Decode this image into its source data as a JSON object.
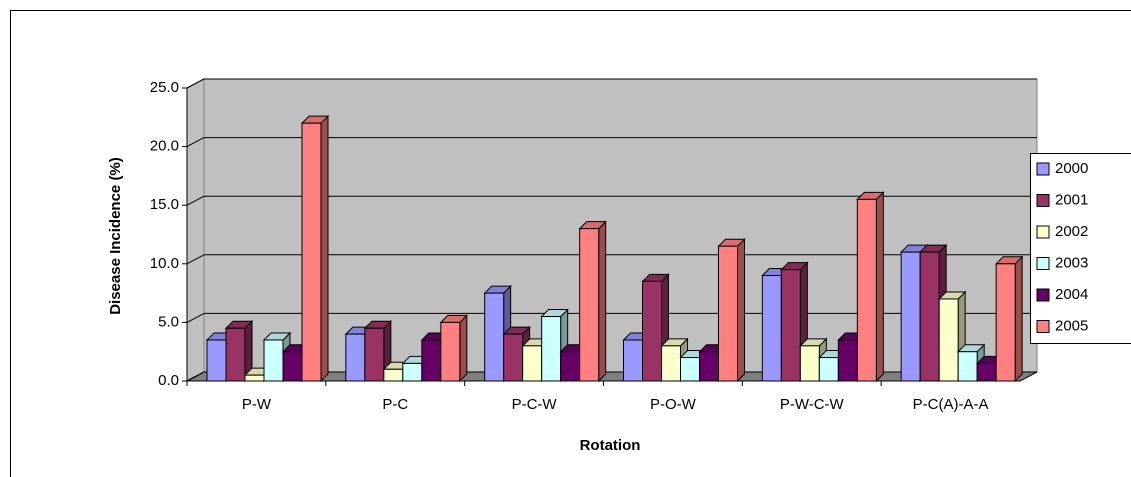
{
  "chart_data": {
    "type": "bar",
    "x_label": "Rotation",
    "y_label": "Disease Incidence (%)",
    "categories": [
      "P-W",
      "P-C",
      "P-C-W",
      "P-O-W",
      "P-W-C-W",
      "P-C(A)-A-A"
    ],
    "series": [
      {
        "name": "2000",
        "color": "#9999ff",
        "values": [
          3.5,
          4,
          7.5,
          3.5,
          9,
          11
        ]
      },
      {
        "name": "2001",
        "color": "#993366",
        "values": [
          4.5,
          4.5,
          4,
          8.5,
          9.5,
          11
        ]
      },
      {
        "name": "2002",
        "color": "#ffffcc",
        "values": [
          0.5,
          1,
          3,
          3,
          3,
          7
        ]
      },
      {
        "name": "2003",
        "color": "#ccffff",
        "values": [
          3.5,
          1.5,
          5.5,
          2,
          2,
          2.5
        ]
      },
      {
        "name": "2004",
        "color": "#660066",
        "values": [
          2.5,
          3.5,
          2.5,
          2.5,
          3.5,
          1.5
        ]
      },
      {
        "name": "2005",
        "color": "#ff8080",
        "values": [
          22,
          5,
          13,
          11.5,
          15.5,
          10
        ]
      }
    ],
    "ylim": [
      0,
      25
    ],
    "yticks": [
      {
        "value": 0,
        "label": "0.0"
      },
      {
        "value": 5,
        "label": "5.0"
      },
      {
        "value": 10,
        "label": "10.0"
      },
      {
        "value": 15,
        "label": "15.0"
      },
      {
        "value": 20,
        "label": "20.0"
      },
      {
        "value": 25,
        "label": "25.0"
      }
    ],
    "grid": true
  }
}
